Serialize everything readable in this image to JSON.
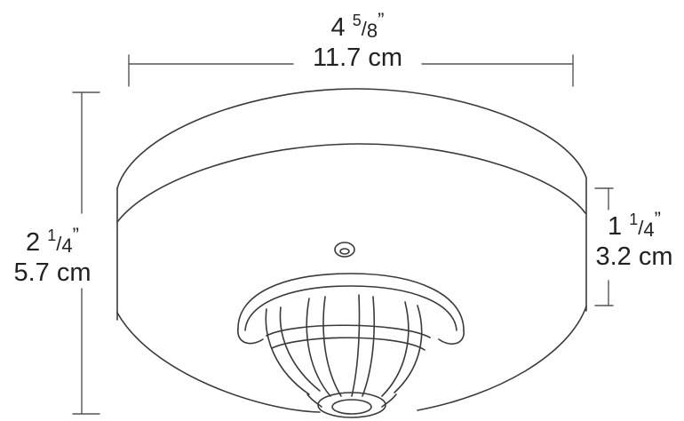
{
  "dimensions": {
    "width": {
      "whole": "4",
      "numerator": "5",
      "denominator": "8",
      "inch_mark": "”",
      "metric": "11.7 cm"
    },
    "height_total": {
      "whole": "2",
      "numerator": "1",
      "denominator": "4",
      "inch_mark": "”",
      "metric": "5.7 cm"
    },
    "height_base": {
      "whole": "1",
      "numerator": "1",
      "denominator": "4",
      "inch_mark": "”",
      "metric": "3.2 cm"
    }
  },
  "colors": {
    "line": "#3a3a3a",
    "dim_line": "#555555",
    "background": "#ffffff"
  }
}
